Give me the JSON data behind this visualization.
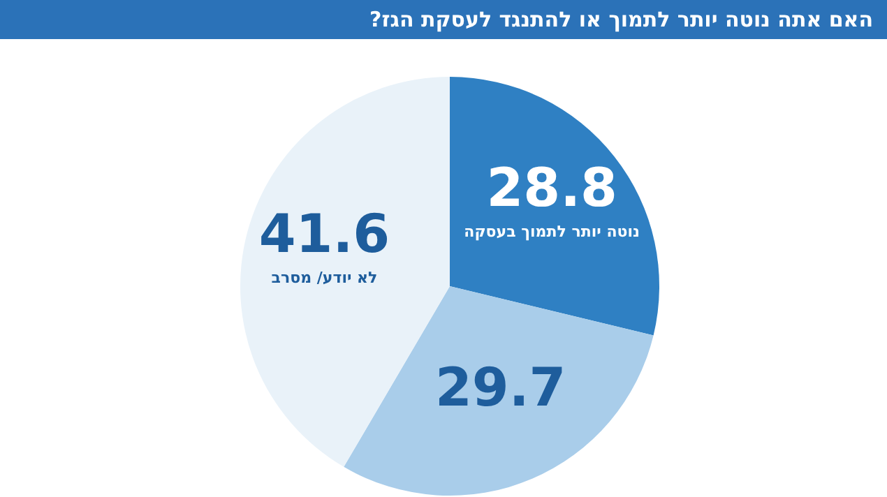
{
  "chart_data": {
    "type": "pie",
    "title": "האם אתה נוטה יותר לתמוך או להתנגד לעסקת הגז?",
    "categories": [
      "נוטה יותר לתמוך בעסקה",
      null,
      "לא יודע/ מסרב"
    ],
    "values": [
      28.8,
      29.7,
      41.6
    ],
    "colors": [
      "#2f80c3",
      "#a9cdea",
      "#e9f2f9"
    ],
    "data_labels": true,
    "legend": false
  }
}
